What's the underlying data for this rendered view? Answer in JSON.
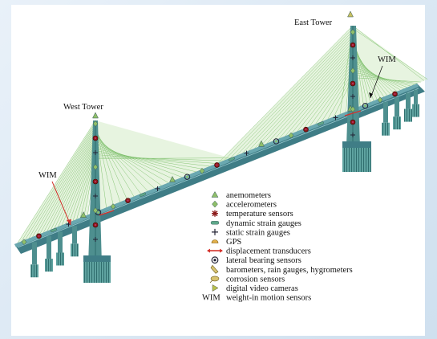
{
  "labels": {
    "east_tower": "East Tower",
    "west_tower": "West Tower",
    "wim_east": "WIM",
    "wim_west": "WIM"
  },
  "legend": [
    {
      "symbol": "anemometer",
      "label": "anemometers"
    },
    {
      "symbol": "accelerometer",
      "label": "accelerometers"
    },
    {
      "symbol": "temperature",
      "label": "temperature sensors"
    },
    {
      "symbol": "dynamic-strain",
      "label": "dynamic strain gauges"
    },
    {
      "symbol": "static-strain",
      "label": "static strain gauges"
    },
    {
      "symbol": "gps",
      "label": "GPS"
    },
    {
      "symbol": "displacement",
      "label": "displacement transducers"
    },
    {
      "symbol": "lateral-bearing",
      "label": "lateral bearing sensors"
    },
    {
      "symbol": "barometer",
      "label": "barometers, rain gauges, hygrometers"
    },
    {
      "symbol": "corrosion",
      "label": "corrosion sensors"
    },
    {
      "symbol": "camera",
      "label": "digital video cameras"
    },
    {
      "symbol": "wim",
      "symbol_text": "WIM",
      "label": "weight-in motion sensors"
    }
  ],
  "colors": {
    "deck": "#3f7d86",
    "deck_top": "#5a9aa3",
    "pier": "#4e8f8f",
    "cable": "#7cbf6a",
    "cable_fill": "#d3ebc7",
    "sensor_green": "#8fbf6a",
    "sensor_red": "#8b1a1a",
    "displacement": "#d4322c"
  }
}
